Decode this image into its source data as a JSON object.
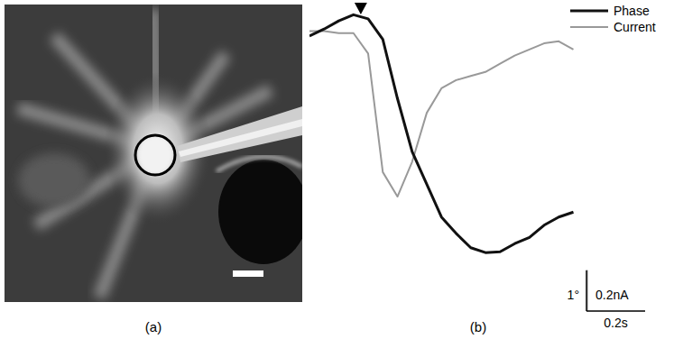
{
  "chart_data": {
    "type": "line",
    "panel_labels": [
      "(a)",
      "(b)"
    ],
    "x": [
      0,
      0.05,
      0.1,
      0.15,
      0.2,
      0.25,
      0.3,
      0.35,
      0.4,
      0.45,
      0.5,
      0.55,
      0.6,
      0.65,
      0.7,
      0.75,
      0.8,
      0.85,
      0.9
    ],
    "xlim": [
      0,
      1.2
    ],
    "ylim": [
      -6,
      1.5
    ],
    "y2lim": [
      -1.2,
      0.3
    ],
    "tick_labels": false,
    "legend": "top-right",
    "stimulus": {
      "x": 0.175,
      "marker": "triangle"
    },
    "series": [
      {
        "name": "Phase",
        "color": "#111111",
        "values": [
          0.73,
          0.9,
          1.1,
          1.25,
          1.15,
          0.65,
          -0.8,
          -2.1,
          -2.9,
          -3.7,
          -4.1,
          -4.45,
          -4.57,
          -4.55,
          -4.35,
          -4.2,
          -3.9,
          -3.7,
          -3.58
        ]
      },
      {
        "name": "Current",
        "color": "#999999",
        "axis": "y2",
        "values": [
          0.17,
          0.17,
          0.16,
          0.16,
          0.06,
          -0.52,
          -0.64,
          -0.47,
          -0.23,
          -0.11,
          -0.07,
          -0.05,
          -0.03,
          0.01,
          0.05,
          0.08,
          0.11,
          0.12,
          0.08
        ]
      }
    ],
    "scale_bars": [
      {
        "label": "1°",
        "value": 1,
        "axis": "y"
      },
      {
        "label": "0.2nA",
        "value": 0.2,
        "axis": "y2"
      },
      {
        "label": "0.2s",
        "value": 0.2,
        "axis": "x"
      }
    ]
  }
}
